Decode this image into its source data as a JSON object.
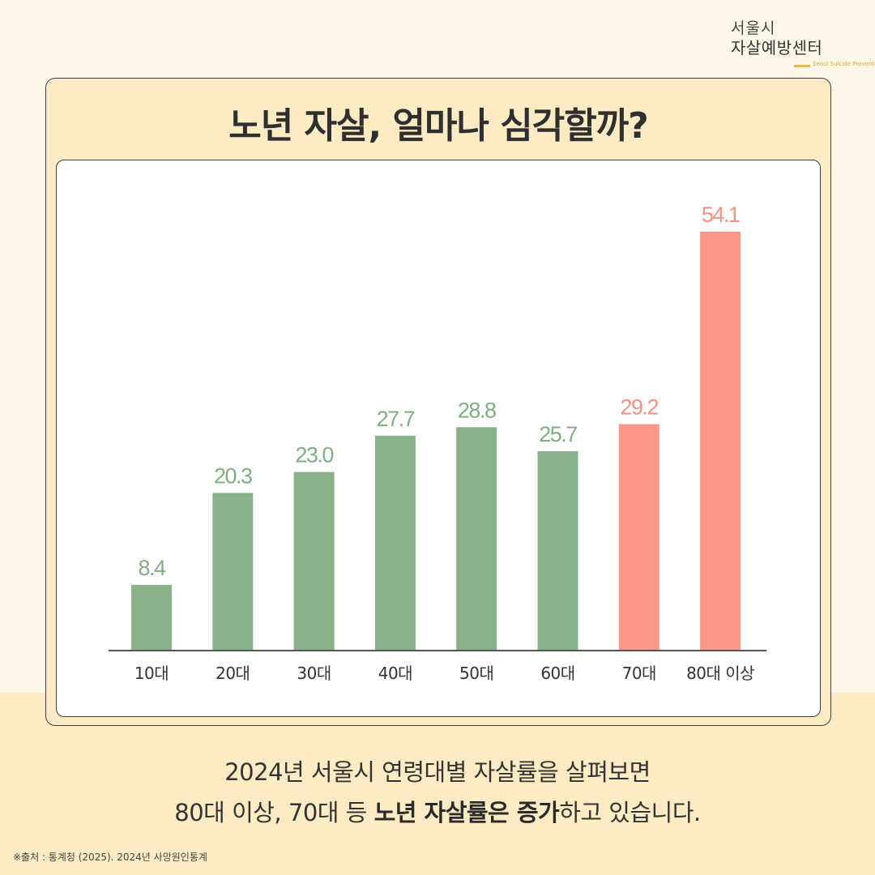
{
  "logo": {
    "line1": "서울시",
    "line2": "자살예방센터",
    "english": "Seoul Suicide Prevention Center"
  },
  "title": "노년 자살, 얼마나 심각할까?",
  "colors": {
    "green_bar": "#88b28a",
    "red_bar": "#fc9688",
    "green_label": "#7fae80",
    "red_label": "#f79183",
    "axis": "#555555"
  },
  "caption": {
    "line1": "2024년 서울시 연령대별 자살률을 살펴보면",
    "line2_pre": "80대 이상, 70대 등 ",
    "line2_bold": "노년 자살률은 증가",
    "line2_post": "하고 있습니다."
  },
  "source": "※출처 : 통계청 (2025). 2024년 사망원인통계",
  "chart_data": {
    "type": "bar",
    "categories": [
      "10대",
      "20대",
      "30대",
      "40대",
      "50대",
      "60대",
      "70대",
      "80대 이상"
    ],
    "values": [
      8.4,
      20.3,
      23.0,
      27.7,
      28.8,
      25.7,
      29.2,
      54.1
    ],
    "value_labels": [
      "8.4",
      "20.3",
      "23.0",
      "27.7",
      "28.8",
      "25.7",
      "29.2",
      "54.1"
    ],
    "highlight": [
      false,
      false,
      false,
      false,
      false,
      false,
      true,
      true
    ],
    "ylim": [
      0,
      54.1
    ],
    "grid": false,
    "legend": "none"
  }
}
